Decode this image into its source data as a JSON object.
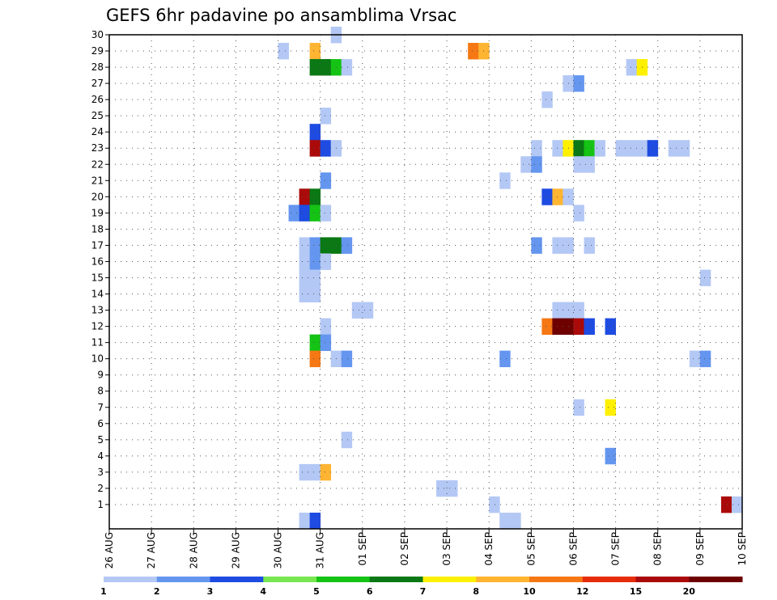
{
  "chart_data": {
    "type": "heatmap",
    "title": "GEFS 6hr padavine po ansamblima Vrsac",
    "xlabel": "",
    "ylabel": "",
    "x_tick_labels": [
      "26 AUG",
      "27 AUG",
      "28 AUG",
      "29 AUG",
      "30 AUG",
      "31 AUG",
      "01 SEP",
      "02 SEP",
      "03 SEP",
      "04 SEP",
      "05 SEP",
      "06 SEP",
      "07 SEP",
      "08 SEP",
      "09 SEP",
      "10 SEP"
    ],
    "x_range_days": [
      0,
      15
    ],
    "y_range": [
      0,
      30
    ],
    "y_ticks": [
      1,
      2,
      3,
      4,
      5,
      6,
      7,
      8,
      9,
      10,
      11,
      12,
      13,
      14,
      15,
      16,
      17,
      18,
      19,
      20,
      21,
      22,
      23,
      24,
      25,
      26,
      27,
      28,
      29,
      30
    ],
    "grid": true,
    "colorbar": {
      "labels": [
        "1",
        "2",
        "3",
        "4",
        "5",
        "6",
        "7",
        "8",
        "10",
        "12",
        "15",
        "20"
      ],
      "colors": [
        "#b4c8f5",
        "#6496f0",
        "#1e4be1",
        "#78e650",
        "#14c314",
        "#0a7814",
        "#fff000",
        "#ffb432",
        "#f57814",
        "#e62d0a",
        "#aa0a0a",
        "#6e0000"
      ]
    },
    "cells": [
      {
        "d": 4.0,
        "m": 29,
        "v": 1
      },
      {
        "d": 4.75,
        "m": 29,
        "v": 8
      },
      {
        "d": 8.5,
        "m": 29,
        "v": 10
      },
      {
        "d": 8.75,
        "m": 29,
        "v": 8
      },
      {
        "d": 5.25,
        "m": 30,
        "v": 1
      },
      {
        "d": 4.75,
        "m": 28,
        "v": 6
      },
      {
        "d": 5.0,
        "m": 28,
        "v": 6
      },
      {
        "d": 5.25,
        "m": 28,
        "v": 5
      },
      {
        "d": 5.5,
        "m": 28,
        "v": 1
      },
      {
        "d": 12.25,
        "m": 28,
        "v": 1
      },
      {
        "d": 12.5,
        "m": 28,
        "v": 7
      },
      {
        "d": 10.75,
        "m": 27,
        "v": 1
      },
      {
        "d": 11.0,
        "m": 27,
        "v": 2
      },
      {
        "d": 10.25,
        "m": 26,
        "v": 1
      },
      {
        "d": 5.0,
        "m": 25,
        "v": 1
      },
      {
        "d": 4.75,
        "m": 24,
        "v": 3
      },
      {
        "d": 4.75,
        "m": 23,
        "v": 15
      },
      {
        "d": 5.0,
        "m": 23,
        "v": 3
      },
      {
        "d": 5.25,
        "m": 23,
        "v": 1
      },
      {
        "d": 10.0,
        "m": 23,
        "v": 1
      },
      {
        "d": 10.5,
        "m": 23,
        "v": 1
      },
      {
        "d": 10.75,
        "m": 23,
        "v": 7
      },
      {
        "d": 11.0,
        "m": 23,
        "v": 6
      },
      {
        "d": 11.25,
        "m": 23,
        "v": 5
      },
      {
        "d": 11.5,
        "m": 23,
        "v": 1
      },
      {
        "d": 12.0,
        "m": 23,
        "v": 1
      },
      {
        "d": 12.25,
        "m": 23,
        "v": 1
      },
      {
        "d": 12.5,
        "m": 23,
        "v": 1
      },
      {
        "d": 12.75,
        "m": 23,
        "v": 3
      },
      {
        "d": 13.25,
        "m": 23,
        "v": 1
      },
      {
        "d": 13.5,
        "m": 23,
        "v": 1
      },
      {
        "d": 9.75,
        "m": 22,
        "v": 1
      },
      {
        "d": 10.0,
        "m": 22,
        "v": 2
      },
      {
        "d": 11.0,
        "m": 22,
        "v": 1
      },
      {
        "d": 11.25,
        "m": 22,
        "v": 1
      },
      {
        "d": 5.0,
        "m": 21,
        "v": 2
      },
      {
        "d": 9.25,
        "m": 21,
        "v": 1
      },
      {
        "d": 4.5,
        "m": 20,
        "v": 15
      },
      {
        "d": 4.75,
        "m": 20,
        "v": 6
      },
      {
        "d": 10.25,
        "m": 20,
        "v": 3
      },
      {
        "d": 10.5,
        "m": 20,
        "v": 8
      },
      {
        "d": 10.75,
        "m": 20,
        "v": 1
      },
      {
        "d": 4.25,
        "m": 19,
        "v": 2
      },
      {
        "d": 4.5,
        "m": 19,
        "v": 3
      },
      {
        "d": 4.75,
        "m": 19,
        "v": 5
      },
      {
        "d": 5.0,
        "m": 19,
        "v": 1
      },
      {
        "d": 11.0,
        "m": 19,
        "v": 1
      },
      {
        "d": 4.5,
        "m": 17,
        "v": 1
      },
      {
        "d": 4.75,
        "m": 17,
        "v": 2
      },
      {
        "d": 5.0,
        "m": 17,
        "v": 6
      },
      {
        "d": 5.25,
        "m": 17,
        "v": 6
      },
      {
        "d": 5.5,
        "m": 17,
        "v": 2
      },
      {
        "d": 10.0,
        "m": 17,
        "v": 2
      },
      {
        "d": 10.5,
        "m": 17,
        "v": 1
      },
      {
        "d": 10.75,
        "m": 17,
        "v": 1
      },
      {
        "d": 11.25,
        "m": 17,
        "v": 1
      },
      {
        "d": 4.5,
        "m": 16,
        "v": 1
      },
      {
        "d": 4.75,
        "m": 16,
        "v": 2
      },
      {
        "d": 5.0,
        "m": 16,
        "v": 1
      },
      {
        "d": 4.5,
        "m": 15,
        "v": 1
      },
      {
        "d": 4.75,
        "m": 15,
        "v": 1
      },
      {
        "d": 14.0,
        "m": 15,
        "v": 1
      },
      {
        "d": 4.5,
        "m": 14,
        "v": 1
      },
      {
        "d": 4.75,
        "m": 14,
        "v": 1
      },
      {
        "d": 5.75,
        "m": 13,
        "v": 1
      },
      {
        "d": 6.0,
        "m": 13,
        "v": 1
      },
      {
        "d": 10.5,
        "m": 13,
        "v": 1
      },
      {
        "d": 10.75,
        "m": 13,
        "v": 1
      },
      {
        "d": 11.0,
        "m": 13,
        "v": 1
      },
      {
        "d": 5.0,
        "m": 12,
        "v": 1
      },
      {
        "d": 10.25,
        "m": 12,
        "v": 10
      },
      {
        "d": 10.5,
        "m": 12,
        "v": 20
      },
      {
        "d": 10.75,
        "m": 12,
        "v": 20
      },
      {
        "d": 11.0,
        "m": 12,
        "v": 15
      },
      {
        "d": 11.25,
        "m": 12,
        "v": 3
      },
      {
        "d": 11.75,
        "m": 12,
        "v": 3
      },
      {
        "d": 4.75,
        "m": 11,
        "v": 5
      },
      {
        "d": 5.0,
        "m": 11,
        "v": 2
      },
      {
        "d": 4.75,
        "m": 10,
        "v": 10
      },
      {
        "d": 5.25,
        "m": 10,
        "v": 1
      },
      {
        "d": 5.5,
        "m": 10,
        "v": 2
      },
      {
        "d": 9.25,
        "m": 10,
        "v": 2
      },
      {
        "d": 13.75,
        "m": 10,
        "v": 1
      },
      {
        "d": 14.0,
        "m": 10,
        "v": 2
      },
      {
        "d": 11.0,
        "m": 7,
        "v": 1
      },
      {
        "d": 11.75,
        "m": 7,
        "v": 7
      },
      {
        "d": 5.5,
        "m": 5,
        "v": 1
      },
      {
        "d": 11.75,
        "m": 4,
        "v": 2
      },
      {
        "d": 4.5,
        "m": 3,
        "v": 1
      },
      {
        "d": 4.75,
        "m": 3,
        "v": 1
      },
      {
        "d": 5.0,
        "m": 3,
        "v": 8
      },
      {
        "d": 7.75,
        "m": 2,
        "v": 1
      },
      {
        "d": 8.0,
        "m": 2,
        "v": 1
      },
      {
        "d": 9.0,
        "m": 1,
        "v": 1
      },
      {
        "d": 14.5,
        "m": 1,
        "v": 15
      },
      {
        "d": 14.75,
        "m": 1,
        "v": 1
      },
      {
        "d": 4.5,
        "m": 0,
        "v": 1
      },
      {
        "d": 4.75,
        "m": 0,
        "v": 3
      },
      {
        "d": 9.25,
        "m": 0,
        "v": 1
      },
      {
        "d": 9.5,
        "m": 0,
        "v": 1
      }
    ]
  }
}
